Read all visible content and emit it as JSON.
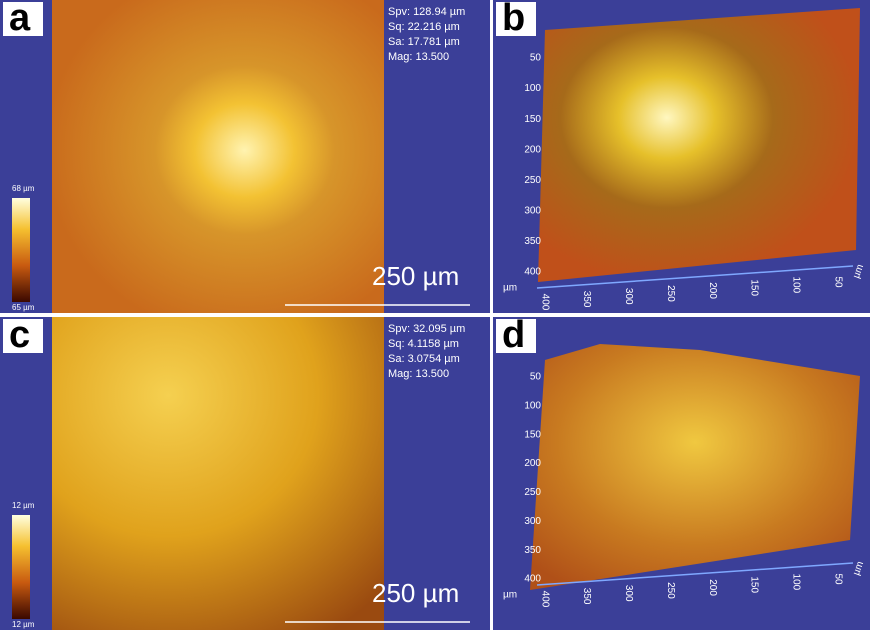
{
  "panels": [
    {
      "letter": "a",
      "stats": [
        "Spv: 128.94 µm",
        "Sq: 22.216 µm",
        "Sa: 17.781 µm",
        "Mag: 13.500"
      ],
      "colorbar": {
        "max": "68 µm",
        "min": "65 µm"
      },
      "scale_bar": "250 µm"
    },
    {
      "letter": "b",
      "y_axis": {
        "ticks": [
          "50",
          "100",
          "150",
          "200",
          "250",
          "300",
          "350",
          "400"
        ],
        "unit": "µm"
      },
      "x_axis": {
        "ticks": [
          "400",
          "350",
          "300",
          "250",
          "200",
          "150",
          "100",
          "50"
        ],
        "unit": "µm"
      }
    },
    {
      "letter": "c",
      "stats": [
        "Spv: 32.095 µm",
        "Sq: 4.1158 µm",
        "Sa: 3.0754 µm",
        "Mag: 13.500"
      ],
      "colorbar": {
        "max": "12 µm",
        "min": "12 µm"
      },
      "scale_bar": "250 µm"
    },
    {
      "letter": "d",
      "y_axis": {
        "ticks": [
          "50",
          "100",
          "150",
          "200",
          "250",
          "300",
          "350",
          "400"
        ],
        "unit": "µm"
      },
      "x_axis": {
        "ticks": [
          "400",
          "350",
          "300",
          "250",
          "200",
          "150",
          "100",
          "50"
        ],
        "unit": "µm"
      }
    }
  ]
}
